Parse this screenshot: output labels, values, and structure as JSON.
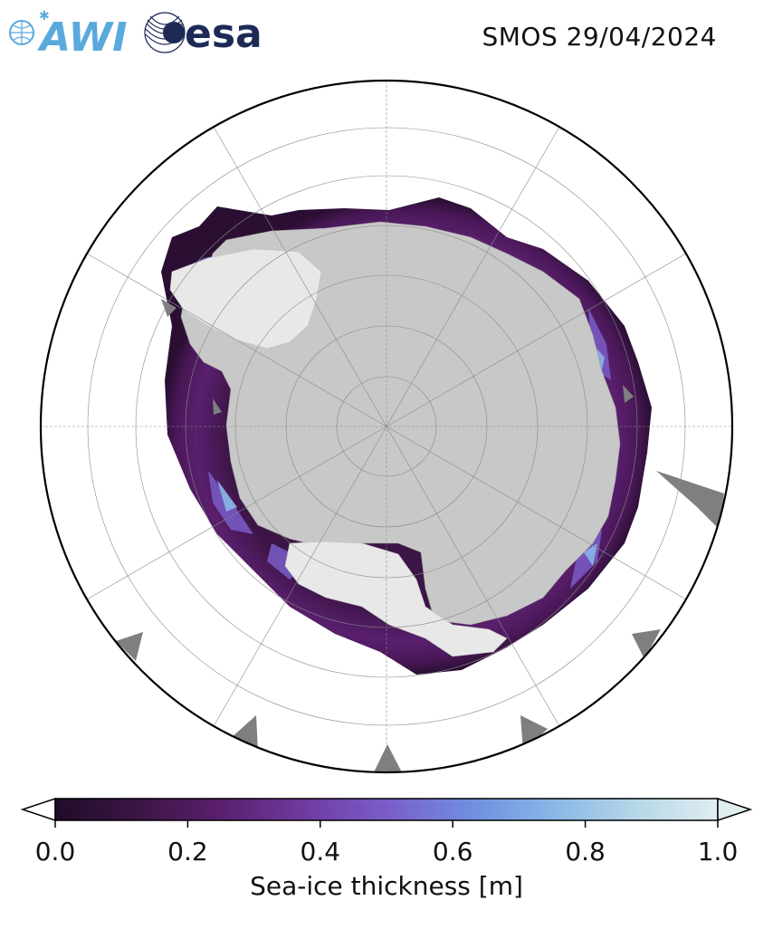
{
  "header": {
    "awi_logo": "AWI",
    "esa_logo": "esa",
    "title": "SMOS 29/04/2024"
  },
  "map": {
    "projection": "south-polar-stereographic",
    "region": "Antarctica / Southern Ocean",
    "graticule": true,
    "colors": {
      "land": "#c8c8c8",
      "ice_shelf": "#e8e8e8",
      "no_data": "#7f7f7f",
      "ocean": "#ffffff"
    }
  },
  "colorbar": {
    "label": "Sea-ice thickness [m]",
    "min": 0.0,
    "max": 1.0,
    "ticks": [
      "0.0",
      "0.2",
      "0.4",
      "0.6",
      "0.8",
      "1.0"
    ],
    "extend": "both",
    "colormap": [
      "#1f0c2a",
      "#3b1545",
      "#5a1f6e",
      "#6f3aa0",
      "#7a5dc8",
      "#6f8ee0",
      "#88b6e6",
      "#b6d6e8",
      "#e0eef0"
    ]
  }
}
